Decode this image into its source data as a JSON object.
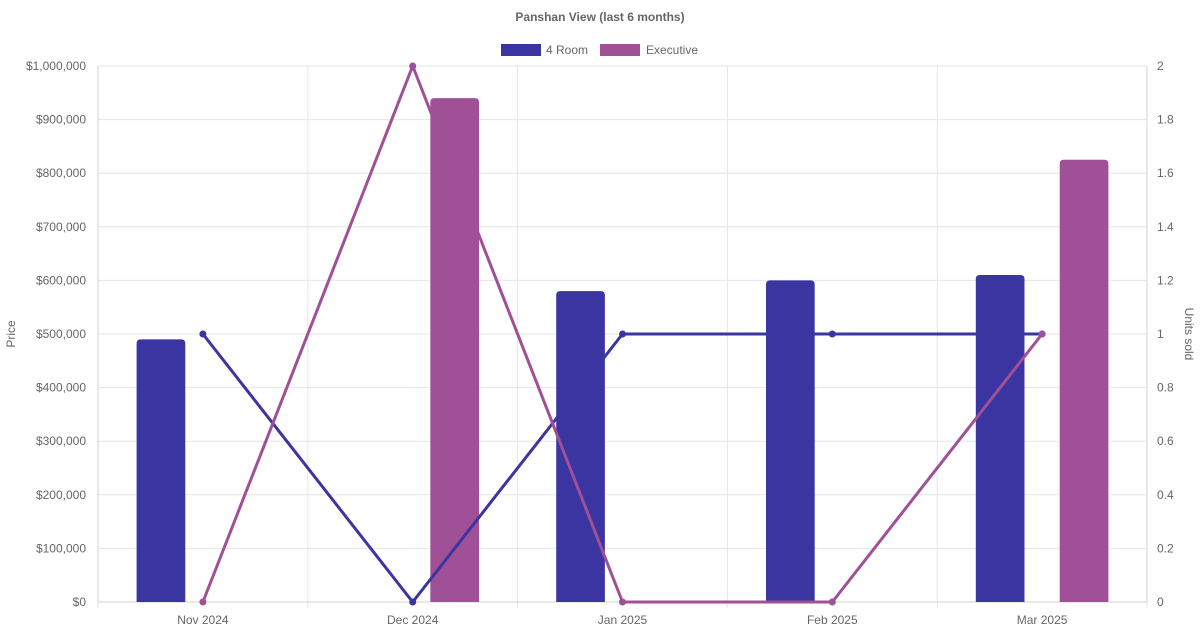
{
  "chart_data": {
    "type": "bar",
    "title": "Panshan View (last 6 months)",
    "categories": [
      "Nov 2024",
      "Dec 2024",
      "Jan 2025",
      "Feb 2025",
      "Mar 2025"
    ],
    "series": [
      {
        "name": "4 Room",
        "type": "bar",
        "axis": "left",
        "color": "#3a35a0",
        "values": [
          490000,
          null,
          580000,
          600000,
          610000
        ]
      },
      {
        "name": "Executive",
        "type": "bar",
        "axis": "left",
        "color": "#a05096",
        "values": [
          null,
          940000,
          null,
          null,
          825000
        ]
      },
      {
        "type": "line",
        "axis": "right",
        "color": "#3a35a0",
        "values": [
          1,
          0,
          1,
          1,
          1
        ]
      },
      {
        "type": "line",
        "axis": "right",
        "color": "#a05096",
        "values": [
          0,
          2,
          0,
          0,
          1
        ]
      }
    ],
    "y_left": {
      "label": "Price",
      "min": 0,
      "max": 1000000,
      "ticks": [
        "$0",
        "$100,000",
        "$200,000",
        "$300,000",
        "$400,000",
        "$500,000",
        "$600,000",
        "$700,000",
        "$800,000",
        "$900,000",
        "$1,000,000"
      ]
    },
    "y_right": {
      "label": "Units sold",
      "min": 0,
      "max": 2,
      "ticks": [
        "0",
        "0.2",
        "0.4",
        "0.6",
        "0.8",
        "1",
        "1.2",
        "1.4",
        "1.6",
        "1.8",
        "2"
      ]
    },
    "legend": {
      "position": "top",
      "items": [
        "4 Room",
        "Executive"
      ]
    },
    "grid": true
  }
}
